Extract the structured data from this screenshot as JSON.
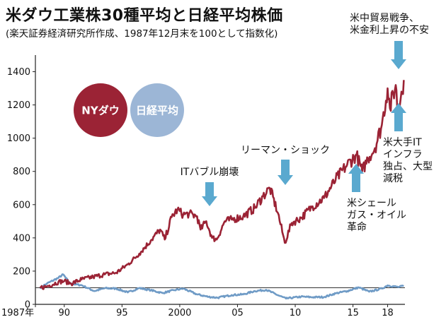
{
  "chart_data": {
    "type": "line",
    "title": "米ダウ工業株30種平均と日経平均株価",
    "subtitle": "(楽天証券経済研究所作成、1987年12月末を100として指数化)",
    "xlabel": "",
    "ylabel": "",
    "xlim": [
      1987.5,
      2019.5
    ],
    "ylim": [
      0,
      1500
    ],
    "y_ticks": [
      "1400",
      "1200",
      "1000",
      "800",
      "600",
      "400",
      "200",
      "0"
    ],
    "x_ticks": [
      {
        "x": 1987.5,
        "label": "1987年"
      },
      {
        "x": 1990,
        "label": "90"
      },
      {
        "x": 1995,
        "label": "95"
      },
      {
        "x": 2000,
        "label": "2000"
      },
      {
        "x": 2005,
        "label": "05"
      },
      {
        "x": 2010,
        "label": "10"
      },
      {
        "x": 2015,
        "label": "15"
      },
      {
        "x": 2018,
        "label": "18"
      }
    ],
    "baseline": 100,
    "series": [
      {
        "name": "NYダウ",
        "color": "#9b2335",
        "points": [
          [
            1987.9,
            100
          ],
          [
            1988.5,
            108
          ],
          [
            1989.5,
            135
          ],
          [
            1990.0,
            140
          ],
          [
            1990.6,
            125
          ],
          [
            1991.5,
            150
          ],
          [
            1992.5,
            165
          ],
          [
            1993.5,
            180
          ],
          [
            1994.5,
            190
          ],
          [
            1995.5,
            240
          ],
          [
            1996.5,
            305
          ],
          [
            1997.5,
            385
          ],
          [
            1998.3,
            450
          ],
          [
            1998.7,
            390
          ],
          [
            1999.3,
            525
          ],
          [
            1999.8,
            570
          ],
          [
            2000.3,
            540
          ],
          [
            2000.8,
            545
          ],
          [
            2001.5,
            530
          ],
          [
            2001.8,
            450
          ],
          [
            2002.3,
            500
          ],
          [
            2002.8,
            400
          ],
          [
            2003.2,
            390
          ],
          [
            2003.9,
            500
          ],
          [
            2004.5,
            510
          ],
          [
            2005.5,
            530
          ],
          [
            2006.5,
            580
          ],
          [
            2007.2,
            650
          ],
          [
            2007.8,
            700
          ],
          [
            2008.5,
            550
          ],
          [
            2009.1,
            370
          ],
          [
            2009.7,
            490
          ],
          [
            2010.5,
            520
          ],
          [
            2011.5,
            590
          ],
          [
            2012.5,
            640
          ],
          [
            2013.5,
            750
          ],
          [
            2014.5,
            840
          ],
          [
            2015.3,
            900
          ],
          [
            2015.8,
            800
          ],
          [
            2016.3,
            880
          ],
          [
            2016.9,
            940
          ],
          [
            2017.5,
            1080
          ],
          [
            2018.0,
            1300
          ],
          [
            2018.2,
            1180
          ],
          [
            2018.7,
            1320
          ],
          [
            2018.9,
            1150
          ],
          [
            2019.2,
            1280
          ],
          [
            2019.4,
            1350
          ]
        ]
      },
      {
        "name": "日経平均",
        "color": "#6f9bc6",
        "points": [
          [
            1987.9,
            100
          ],
          [
            1988.5,
            125
          ],
          [
            1989.5,
            160
          ],
          [
            1989.9,
            180
          ],
          [
            1990.5,
            125
          ],
          [
            1991.5,
            115
          ],
          [
            1992.6,
            80
          ],
          [
            1993.5,
            97
          ],
          [
            1994.5,
            95
          ],
          [
            1995.5,
            72
          ],
          [
            1996.5,
            98
          ],
          [
            1997.5,
            85
          ],
          [
            1998.5,
            68
          ],
          [
            1999.5,
            85
          ],
          [
            2000.3,
            95
          ],
          [
            2001.5,
            60
          ],
          [
            2002.5,
            45
          ],
          [
            2003.3,
            40
          ],
          [
            2004.5,
            56
          ],
          [
            2005.5,
            60
          ],
          [
            2006.5,
            80
          ],
          [
            2007.5,
            87
          ],
          [
            2008.5,
            55
          ],
          [
            2009.2,
            35
          ],
          [
            2010.5,
            46
          ],
          [
            2011.5,
            43
          ],
          [
            2012.5,
            44
          ],
          [
            2013.5,
            66
          ],
          [
            2014.5,
            80
          ],
          [
            2015.5,
            102
          ],
          [
            2016.4,
            76
          ],
          [
            2017.5,
            95
          ],
          [
            2018.0,
            114
          ],
          [
            2018.9,
            104
          ],
          [
            2019.4,
            110
          ]
        ]
      }
    ],
    "legend": [
      {
        "label": "NYダウ",
        "color": "#9b2335"
      },
      {
        "label": "日経平均",
        "color": "#9cb6d6"
      }
    ],
    "annotations": [
      {
        "lines": [
          "ITバブル崩壊"
        ],
        "x": 2002.0,
        "y": 580,
        "arrow": "down"
      },
      {
        "lines": [
          "リーマン・ショック"
        ],
        "x": 2008.5,
        "y": 720,
        "arrow": "down"
      },
      {
        "lines": [
          "米中貿易戦争、",
          "米金利上昇の不安"
        ],
        "x": 2018.4,
        "y": 1390,
        "arrow": "down"
      },
      {
        "lines": [
          "米大手IT",
          "インフラ",
          "独占、大型",
          "減税"
        ],
        "x": 2017.7,
        "y": 1060,
        "arrow": "up"
      },
      {
        "lines": [
          "米シェール",
          "ガス・オイル",
          "革命"
        ],
        "x": 2014.4,
        "y": 890,
        "arrow": "up"
      }
    ]
  }
}
